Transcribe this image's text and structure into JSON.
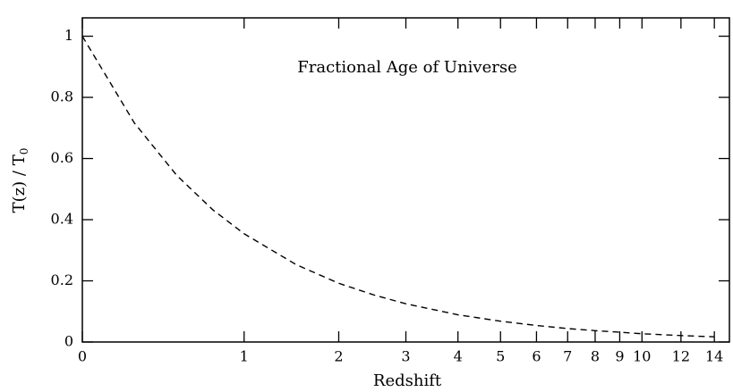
{
  "chart_data": {
    "type": "line",
    "title": "Fractional Age of Universe",
    "x_label": "Redshift",
    "y_label": "T(z) / T",
    "y_label_subscript": "0",
    "xscale": "log1p",
    "x": [
      0,
      0.25,
      0.5,
      0.75,
      1,
      1.5,
      2,
      2.5,
      3,
      4,
      5,
      6,
      7,
      8,
      9,
      10,
      12,
      14
    ],
    "series": [
      {
        "name": "T(z) / T0",
        "color": "#000000",
        "dashed": true,
        "values": [
          1,
          0.716,
          0.544,
          0.432,
          0.354,
          0.253,
          0.192,
          0.153,
          0.125,
          0.089,
          0.068,
          0.054,
          0.044,
          0.037,
          0.032,
          0.027,
          0.021,
          0.017
        ]
      }
    ],
    "xlim": [
      0,
      15
    ],
    "xticks": [
      0,
      1,
      2,
      3,
      4,
      5,
      6,
      7,
      8,
      9,
      10,
      12,
      14
    ],
    "ylim": [
      0,
      1.06
    ],
    "yticks": [
      0,
      0.2,
      0.4,
      0.6,
      0.8,
      1
    ],
    "grid": false
  }
}
